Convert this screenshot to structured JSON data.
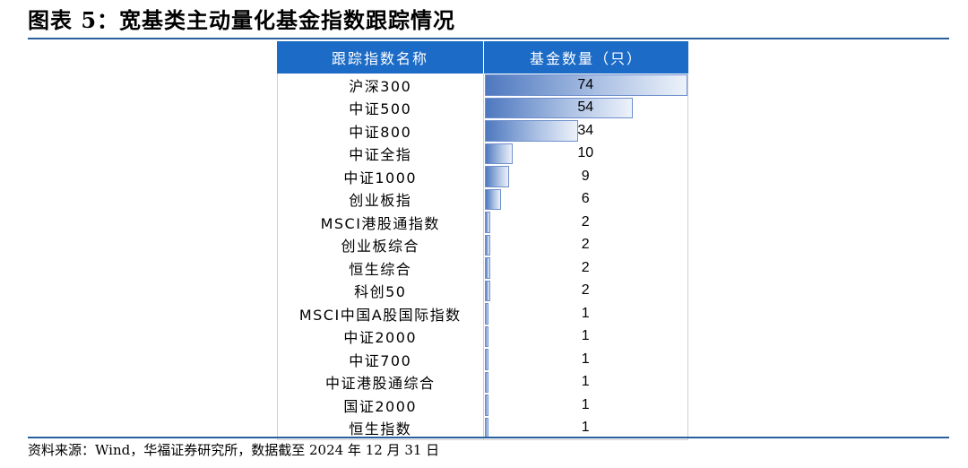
{
  "title": "图表 5：宽基类主动量化基金指数跟踪情况",
  "table": {
    "headers": [
      "跟踪指数名称",
      "基金数量（只）"
    ],
    "max_value": 74,
    "rows": [
      {
        "name": "沪深300",
        "count": 74
      },
      {
        "name": "中证500",
        "count": 54
      },
      {
        "name": "中证800",
        "count": 34
      },
      {
        "name": "中证全指",
        "count": 10
      },
      {
        "name": "中证1000",
        "count": 9
      },
      {
        "name": "创业板指",
        "count": 6
      },
      {
        "name": "MSCI港股通指数",
        "count": 2
      },
      {
        "name": "创业板综合",
        "count": 2
      },
      {
        "name": "恒生综合",
        "count": 2
      },
      {
        "name": "科创50",
        "count": 2
      },
      {
        "name": "MSCI中国A股国际指数",
        "count": 1
      },
      {
        "name": "中证2000",
        "count": 1
      },
      {
        "name": "中证700",
        "count": 1
      },
      {
        "name": "中证港股通综合",
        "count": 1
      },
      {
        "name": "国证2000",
        "count": 1
      },
      {
        "name": "恒生指数",
        "count": 1
      }
    ]
  },
  "source": "资料来源：Wind，华福证券研究所，数据截至 2024 年 12 月 31 日",
  "colors": {
    "header_bg": "#1c6bc6",
    "rule": "#2a5f9e",
    "bar_start": "#4e78bf",
    "bar_end": "#edf2fa"
  }
}
